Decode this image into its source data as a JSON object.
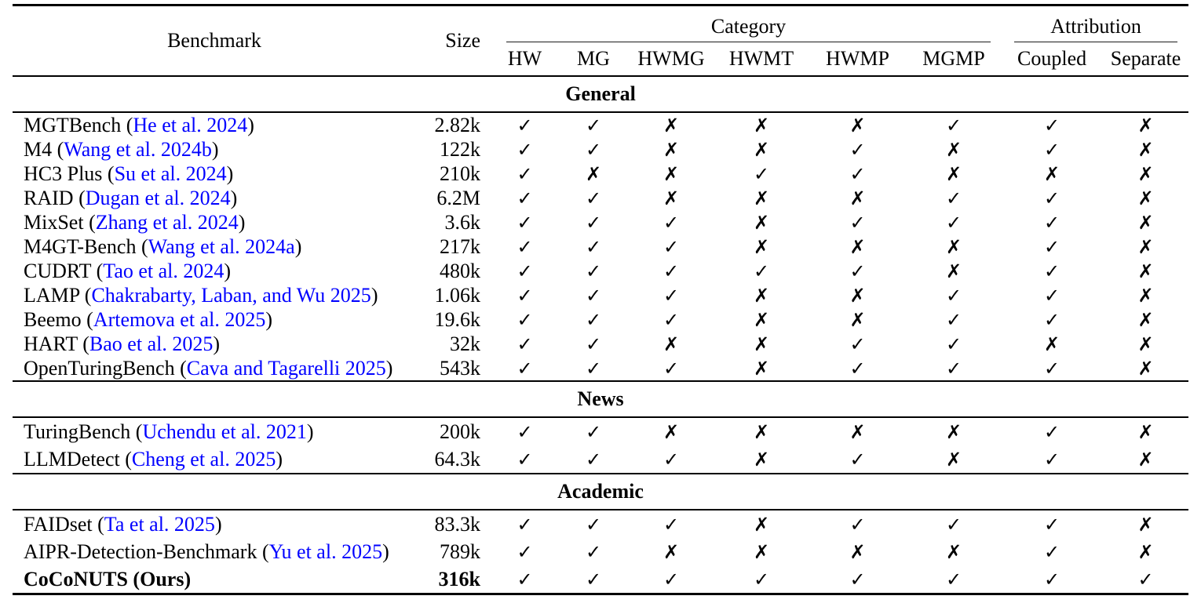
{
  "header": {
    "benchmark": "Benchmark",
    "size": "Size",
    "category_group": "Category",
    "attribution_group": "Attribution",
    "category_cols": [
      "HW",
      "MG",
      "HWMG",
      "HWMT",
      "HWMP",
      "MGMP"
    ],
    "attribution_cols": [
      "Coupled",
      "Separate"
    ]
  },
  "format": {
    "paren_open": " (",
    "paren_close": ")"
  },
  "symbols": {
    "yes": "✓",
    "no": "✗"
  },
  "colors": {
    "citation_link": "#0000FF",
    "text": "#000000",
    "rule": "#000000"
  },
  "sections": [
    {
      "title": "General",
      "rows": [
        {
          "name": "MGTBench",
          "cite": "He et al. 2024",
          "cite_is_link": true,
          "bold": false,
          "size": "2.82k",
          "marks": [
            "y",
            "y",
            "n",
            "n",
            "n",
            "y",
            "y",
            "n"
          ]
        },
        {
          "name": "M4",
          "cite": "Wang et al. 2024b",
          "cite_is_link": true,
          "bold": false,
          "size": "122k",
          "marks": [
            "y",
            "y",
            "n",
            "n",
            "y",
            "n",
            "y",
            "n"
          ]
        },
        {
          "name": "HC3 Plus",
          "cite": "Su et al. 2024",
          "cite_is_link": true,
          "bold": false,
          "size": "210k",
          "marks": [
            "y",
            "n",
            "n",
            "y",
            "y",
            "n",
            "n",
            "n"
          ]
        },
        {
          "name": "RAID",
          "cite": "Dugan et al. 2024",
          "cite_is_link": true,
          "bold": false,
          "size": "6.2M",
          "marks": [
            "y",
            "y",
            "n",
            "n",
            "n",
            "y",
            "y",
            "n"
          ]
        },
        {
          "name": "MixSet",
          "cite": "Zhang et al. 2024",
          "cite_is_link": true,
          "bold": false,
          "size": "3.6k",
          "marks": [
            "y",
            "y",
            "y",
            "n",
            "y",
            "y",
            "y",
            "n"
          ]
        },
        {
          "name": "M4GT-Bench",
          "cite": "Wang et al. 2024a",
          "cite_is_link": true,
          "bold": false,
          "size": "217k",
          "marks": [
            "y",
            "y",
            "y",
            "n",
            "n",
            "n",
            "y",
            "n"
          ]
        },
        {
          "name": "CUDRT",
          "cite": "Tao et al. 2024",
          "cite_is_link": true,
          "bold": false,
          "size": "480k",
          "marks": [
            "y",
            "y",
            "y",
            "y",
            "y",
            "n",
            "y",
            "n"
          ]
        },
        {
          "name": "LAMP",
          "cite": "Chakrabarty, Laban, and Wu 2025",
          "cite_is_link": true,
          "bold": false,
          "size": "1.06k",
          "marks": [
            "y",
            "y",
            "y",
            "n",
            "n",
            "y",
            "y",
            "n"
          ]
        },
        {
          "name": "Beemo",
          "cite": "Artemova et al. 2025",
          "cite_is_link": true,
          "bold": false,
          "size": "19.6k",
          "marks": [
            "y",
            "y",
            "y",
            "n",
            "n",
            "y",
            "y",
            "n"
          ]
        },
        {
          "name": "HART",
          "cite": "Bao et al. 2025",
          "cite_is_link": true,
          "bold": false,
          "size": "32k",
          "marks": [
            "y",
            "y",
            "n",
            "n",
            "y",
            "y",
            "n",
            "n"
          ]
        },
        {
          "name": "OpenTuringBench",
          "cite": "Cava and Tagarelli 2025",
          "cite_is_link": true,
          "bold": false,
          "size": "543k",
          "marks": [
            "y",
            "y",
            "y",
            "n",
            "y",
            "y",
            "y",
            "n"
          ]
        }
      ]
    },
    {
      "title": "News",
      "rows": [
        {
          "name": "TuringBench",
          "cite": "Uchendu et al. 2021",
          "cite_is_link": true,
          "bold": false,
          "size": "200k",
          "marks": [
            "y",
            "y",
            "n",
            "n",
            "n",
            "n",
            "y",
            "n"
          ]
        },
        {
          "name": "LLMDetect",
          "cite": "Cheng et al. 2025",
          "cite_is_link": true,
          "bold": false,
          "size": "64.3k",
          "marks": [
            "y",
            "y",
            "y",
            "n",
            "y",
            "n",
            "y",
            "n"
          ]
        }
      ]
    },
    {
      "title": "Academic",
      "rows": [
        {
          "name": "FAIDset",
          "cite": "Ta et al. 2025",
          "cite_is_link": true,
          "bold": false,
          "size": "83.3k",
          "marks": [
            "y",
            "y",
            "y",
            "n",
            "y",
            "y",
            "y",
            "n"
          ]
        },
        {
          "name": "AIPR-Detection-Benchmark",
          "cite": "Yu et al. 2025",
          "cite_is_link": true,
          "bold": false,
          "size": "789k",
          "marks": [
            "y",
            "y",
            "n",
            "n",
            "n",
            "n",
            "y",
            "n"
          ]
        },
        {
          "name": "CoCoNUTS",
          "cite": "Ours",
          "cite_is_link": false,
          "bold": true,
          "size": "316k",
          "marks": [
            "y",
            "y",
            "y",
            "y",
            "y",
            "y",
            "y",
            "y"
          ]
        }
      ]
    }
  ]
}
